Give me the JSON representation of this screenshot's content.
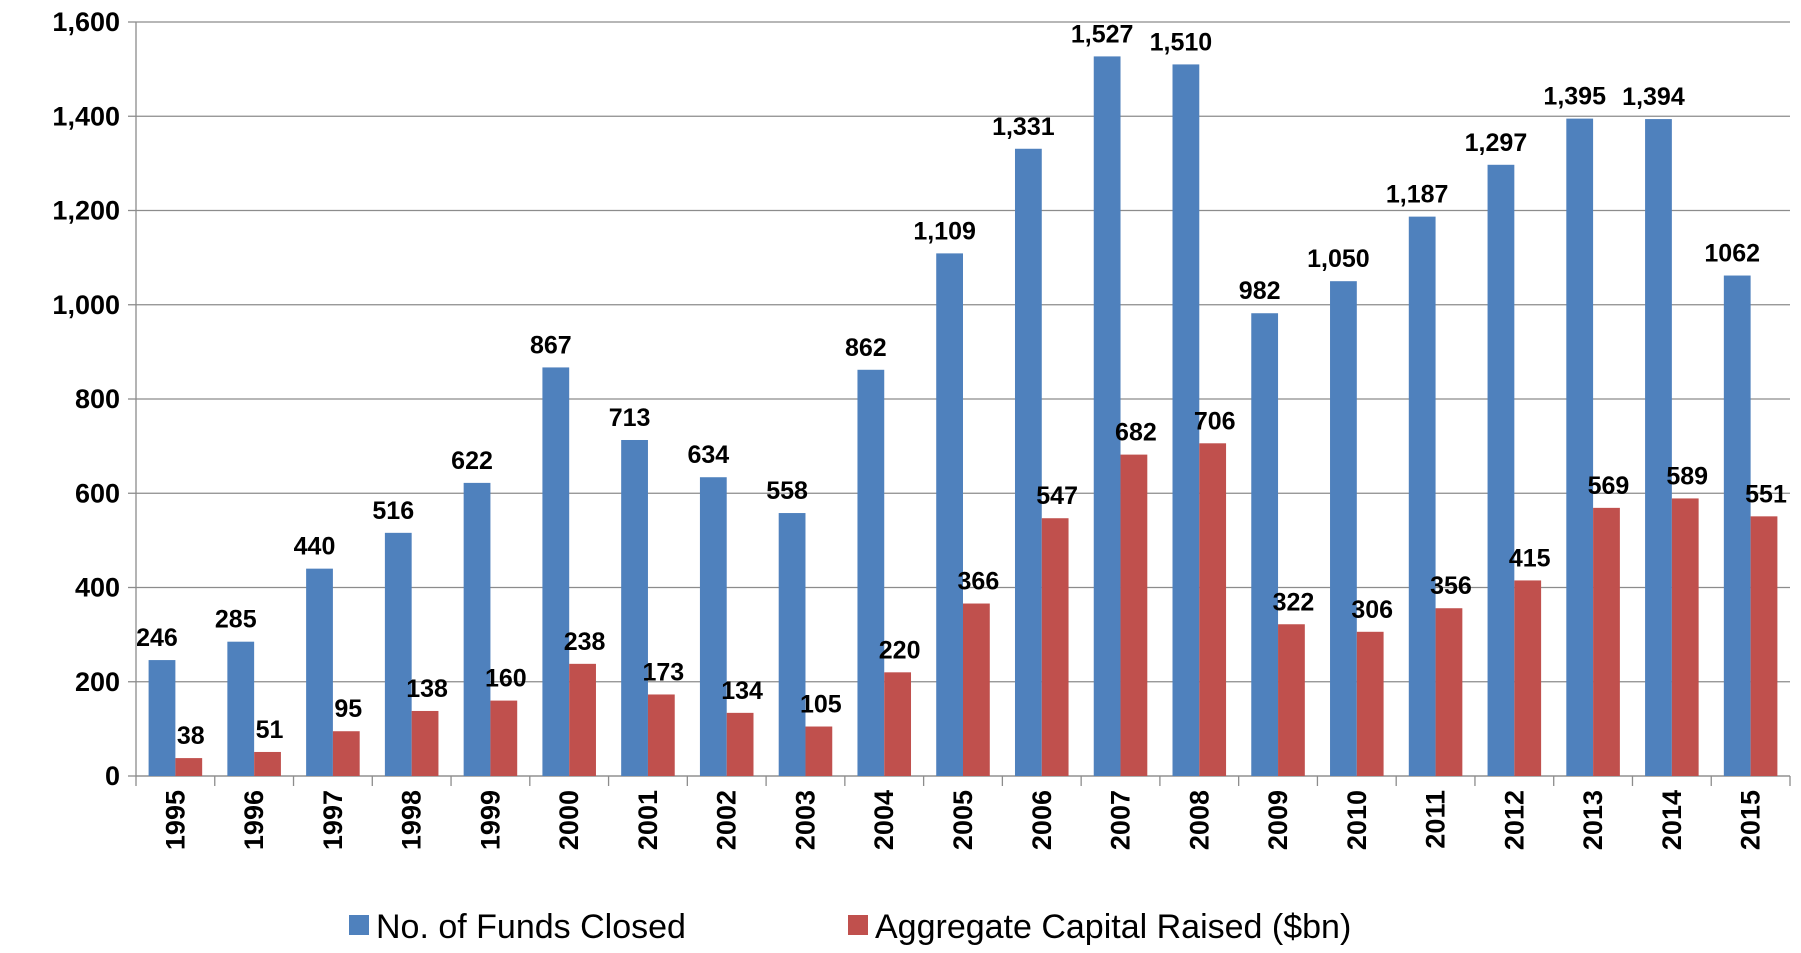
{
  "chart_data": {
    "type": "bar",
    "categories": [
      "1995",
      "1996",
      "1997",
      "1998",
      "1999",
      "2000",
      "2001",
      "2002",
      "2003",
      "2004",
      "2005",
      "2006",
      "2007",
      "2008",
      "2009",
      "2010",
      "2011",
      "2012",
      "2013",
      "2014",
      "2015"
    ],
    "series": [
      {
        "name": "No. of Funds Closed",
        "color": "#4f81bd",
        "values": [
          246,
          285,
          440,
          516,
          622,
          867,
          713,
          634,
          558,
          862,
          1109,
          1331,
          1527,
          1510,
          982,
          1050,
          1187,
          1297,
          1395,
          1394,
          1062
        ],
        "value_labels": [
          "246",
          "285",
          "440",
          "516",
          "622",
          "867",
          "713",
          "634",
          "558",
          "862",
          "1,109",
          "1,331",
          "1,527",
          "1,510",
          "982",
          "1,050",
          "1,187",
          "1,297",
          "1,395",
          "1,394",
          "1062"
        ]
      },
      {
        "name": "Aggregate Capital Raised ($bn)",
        "color": "#c0504d",
        "values": [
          38,
          51,
          95,
          138,
          160,
          238,
          173,
          134,
          105,
          220,
          366,
          547,
          682,
          706,
          322,
          306,
          356,
          415,
          569,
          589,
          551
        ]
      }
    ],
    "ylim": [
      0,
      1600
    ],
    "yticks": [
      0,
      200,
      400,
      600,
      800,
      {
        "value": 1000,
        "label": "1,000"
      },
      {
        "value": 1200,
        "label": "1,200"
      },
      {
        "value": 1400,
        "label": "1,400"
      },
      {
        "value": 1600,
        "label": "1,600"
      }
    ],
    "grid": true,
    "legend": "bottom"
  }
}
